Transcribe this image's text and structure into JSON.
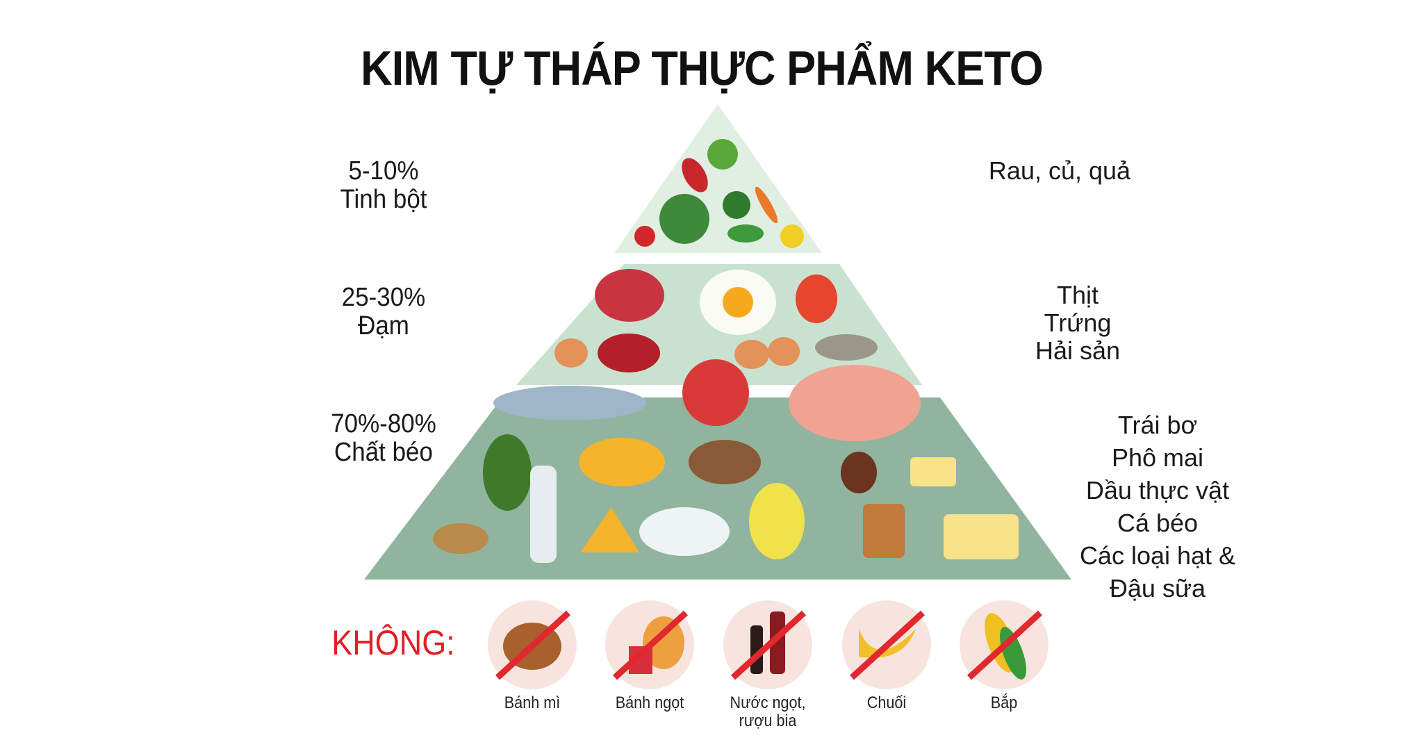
{
  "title": "KIM TỰ THÁP THỰC PHẨM KETO",
  "tiers": [
    {
      "percent": "5-10%",
      "category": "Tinh bột",
      "foods": [
        "Rau, củ, quả"
      ],
      "color": "#e0efe2"
    },
    {
      "percent": "25-30%",
      "category": "Đạm",
      "foods": [
        "Thịt",
        "Trứng",
        "Hải sản"
      ],
      "color": "#c9e2d0"
    },
    {
      "percent": "70%-80%",
      "category": "Chất béo",
      "foods": [
        "Trái bơ",
        "Phô mai",
        "Dầu thực vật",
        "Cá béo",
        "Các loại hạt &",
        "Đậu sữa"
      ],
      "color": "#90b49e"
    }
  ],
  "avoid": {
    "label": "KHÔNG:",
    "label_color": "#e01f26",
    "items": [
      {
        "name": "Bánh mì",
        "icon": "bread-icon"
      },
      {
        "name": "Bánh ngọt",
        "icon": "pastry-icon"
      },
      {
        "name": "Nước ngọt,",
        "name2": "rượu bia",
        "icon": "soda-beer-icon"
      },
      {
        "name": "Chuối",
        "icon": "banana-icon"
      },
      {
        "name": "Bắp",
        "icon": "corn-icon"
      }
    ]
  }
}
